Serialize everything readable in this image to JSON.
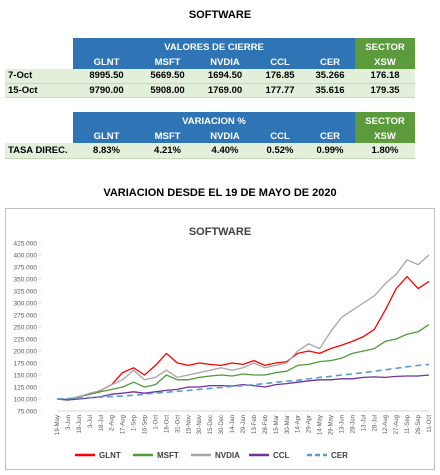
{
  "title": "SOFTWARE",
  "table1": {
    "group_header": "VALORES DE CIERRE",
    "sector_header": "SECTOR",
    "columns": [
      "GLNT",
      "MSFT",
      "NVDIA",
      "CCL",
      "CER",
      "XSW"
    ],
    "rows": [
      [
        "7-Oct",
        "8995.50",
        "5669.50",
        "1694.50",
        "176.85",
        "35.266",
        "176.18"
      ],
      [
        "15-Oct",
        "9790.00",
        "5908.00",
        "1769.00",
        "177.77",
        "35.616",
        "179.35"
      ]
    ]
  },
  "table2": {
    "group_header": "VARIACION %",
    "sector_header": "SECTOR",
    "columns": [
      "GLNT",
      "MSFT",
      "NVDIA",
      "CCL",
      "CER",
      "XSW"
    ],
    "rows": [
      [
        "TASA DIREC.",
        "8.83%",
        "4.21%",
        "4.40%",
        "0.52%",
        "0.99%",
        "1.80%"
      ]
    ]
  },
  "chart_heading": "VARIACION DESDE EL 19 DE MAYO DE 2020",
  "chart_data": {
    "type": "line",
    "title": "SOFTWARE",
    "categories": [
      "19-May",
      "3-Jun",
      "18-Jun",
      "3-Jul",
      "18-Jul",
      "2-Aug",
      "17-Aug",
      "1-Sep",
      "16-Sep",
      "1-Oct",
      "16-Oct",
      "31-Oct",
      "15-Nov",
      "30-Nov",
      "15-Dec",
      "30-Dec",
      "14-Jan",
      "29-Jan",
      "13-Feb",
      "28-Feb",
      "15-Mar",
      "30-Mar",
      "14-Apr",
      "29-Apr",
      "14-May",
      "29-May",
      "13-Jun",
      "28-Jun",
      "13-Jul",
      "28-Jul",
      "12-Aug",
      "27-Aug",
      "11-Sep",
      "26-Sep",
      "11-Oct"
    ],
    "series": [
      {
        "name": "GLNT",
        "color": "#ff0000",
        "values": [
          100,
          98,
          105,
          110,
          118,
          130,
          155,
          165,
          150,
          170,
          195,
          175,
          170,
          175,
          172,
          170,
          175,
          172,
          180,
          170,
          175,
          178,
          195,
          200,
          195,
          205,
          212,
          220,
          230,
          245,
          285,
          330,
          355,
          330,
          345
        ]
      },
      {
        "name": "MSFT",
        "color": "#4f9a3a",
        "values": [
          100,
          98,
          105,
          110,
          115,
          120,
          125,
          135,
          125,
          130,
          150,
          140,
          140,
          145,
          148,
          150,
          148,
          152,
          150,
          150,
          155,
          158,
          170,
          172,
          178,
          180,
          185,
          195,
          200,
          205,
          220,
          225,
          235,
          240,
          255
        ]
      },
      {
        "name": "NVDIA",
        "color": "#a6a6a6",
        "values": [
          100,
          100,
          105,
          112,
          118,
          130,
          140,
          160,
          140,
          145,
          160,
          145,
          150,
          155,
          160,
          165,
          160,
          165,
          175,
          165,
          170,
          175,
          200,
          215,
          205,
          240,
          270,
          285,
          300,
          315,
          340,
          360,
          390,
          380,
          400
        ]
      },
      {
        "name": "CCL",
        "color": "#7030a0",
        "values": [
          100,
          98,
          100,
          102,
          105,
          110,
          112,
          115,
          112,
          115,
          118,
          120,
          125,
          125,
          128,
          128,
          127,
          130,
          128,
          125,
          130,
          132,
          135,
          138,
          140,
          140,
          142,
          142,
          145,
          146,
          145,
          147,
          148,
          148,
          150
        ]
      },
      {
        "name": "CER",
        "color": "#5b9bd5",
        "dashed": true,
        "values": [
          100,
          101,
          102,
          103,
          104,
          105,
          106,
          108,
          110,
          112,
          114,
          116,
          118,
          120,
          122,
          124,
          126,
          128,
          130,
          132,
          135,
          137,
          139,
          142,
          145,
          147,
          150,
          152,
          155,
          158,
          161,
          164,
          167,
          170,
          172
        ]
      }
    ],
    "ylim": [
      75,
      425
    ],
    "yticks": [
      {
        "value": 75,
        "label": "75.000"
      },
      {
        "value": 100,
        "label": "100.000"
      },
      {
        "value": 125,
        "label": "125.000"
      },
      {
        "value": 150,
        "label": "150.000"
      },
      {
        "value": 175,
        "label": "175.000"
      },
      {
        "value": 200,
        "label": "200.000"
      },
      {
        "value": 225,
        "label": "225.000"
      },
      {
        "value": 250,
        "label": "250.000"
      },
      {
        "value": 275,
        "label": "275.000"
      },
      {
        "value": 300,
        "label": "300.000"
      },
      {
        "value": 325,
        "label": "325.000"
      },
      {
        "value": 350,
        "label": "350.000"
      },
      {
        "value": 375,
        "label": "375.000"
      },
      {
        "value": 400,
        "label": "400.000"
      },
      {
        "value": 425,
        "label": "425.000"
      }
    ],
    "legend": "bottom"
  }
}
